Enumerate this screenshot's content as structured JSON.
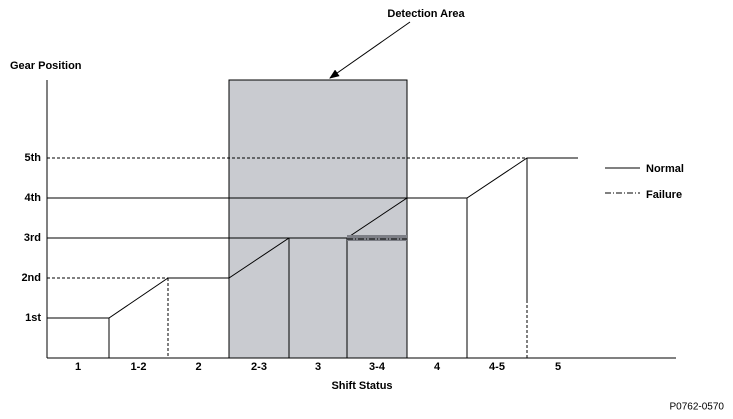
{
  "title": "Detection Area",
  "y_axis": {
    "label": "Gear Position",
    "levels": [
      "1st",
      "2nd",
      "3rd",
      "4th",
      "5th"
    ]
  },
  "x_axis": {
    "label": "Shift Status",
    "categories": [
      "1",
      "1-2",
      "2",
      "2-3",
      "3",
      "3-4",
      "4",
      "4-5",
      "5"
    ]
  },
  "legend": [
    "Normal",
    "Failure"
  ],
  "footer": "P0762-0570"
}
